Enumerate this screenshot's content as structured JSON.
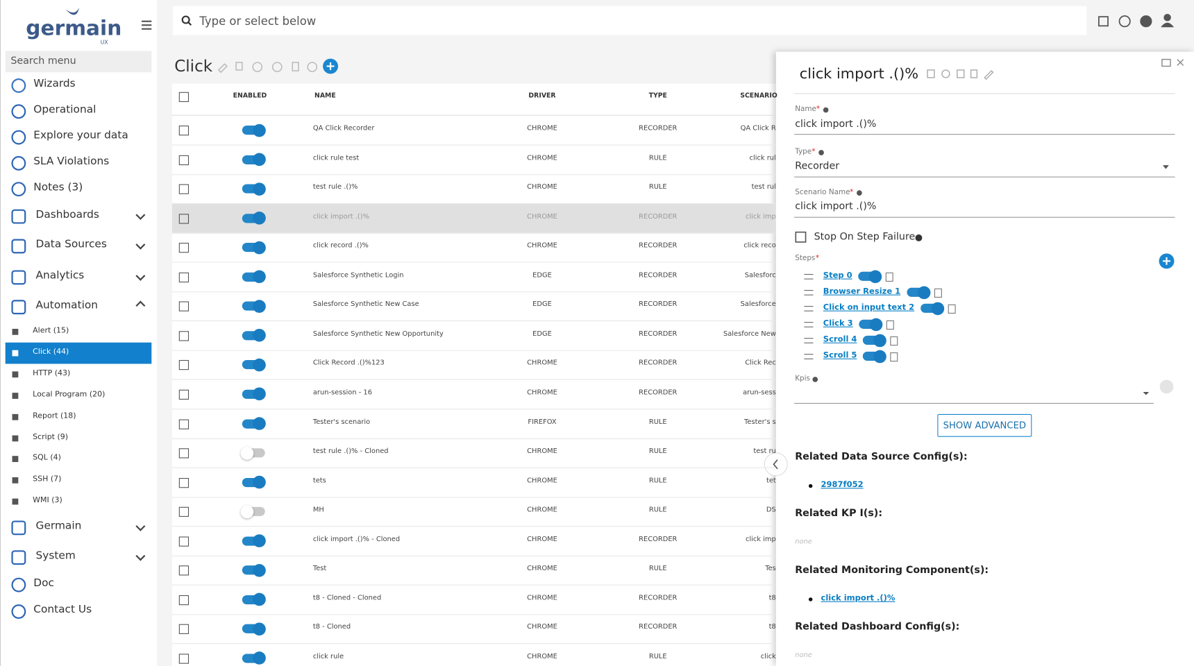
{
  "sidebar": {
    "logo": "germain",
    "logo_sub": "UX",
    "search_placeholder": "Search menu",
    "menu": [
      {
        "label": "Wizards"
      },
      {
        "label": "Operational"
      },
      {
        "label": "Explore your data"
      },
      {
        "label": "SLA Violations"
      },
      {
        "label": "Notes (3)"
      },
      {
        "label": "Dashboards",
        "expandable": true
      },
      {
        "label": "Data Sources",
        "expandable": true
      },
      {
        "label": "Analytics",
        "expandable": true
      },
      {
        "label": "Automation",
        "expandable": true,
        "expanded": true,
        "children": [
          {
            "label": "Alert (15)"
          },
          {
            "label": "Click (44)",
            "selected": true
          },
          {
            "label": "HTTP (43)"
          },
          {
            "label": "Local Program (20)"
          },
          {
            "label": "Report (18)"
          },
          {
            "label": "Script (9)"
          },
          {
            "label": "SQL (4)"
          },
          {
            "label": "SSH (7)"
          },
          {
            "label": "WMI (3)"
          }
        ]
      },
      {
        "label": "Germain",
        "expandable": true
      },
      {
        "label": "System",
        "expandable": true
      },
      {
        "label": "Doc"
      },
      {
        "label": "Contact Us"
      }
    ]
  },
  "topbar": {
    "search_placeholder": "Type or select below"
  },
  "page": {
    "title": "Click"
  },
  "table": {
    "columns": [
      "ENABLED",
      "NAME",
      "DRIVER",
      "TYPE",
      "SCENARIO"
    ],
    "selected_row": 3,
    "rows": [
      {
        "enabled": true,
        "name": "QA Click Recorder",
        "driver": "CHROME",
        "type": "RECORDER",
        "scenario": "QA Click R"
      },
      {
        "enabled": true,
        "name": "click rule test",
        "driver": "CHROME",
        "type": "RULE",
        "scenario": "click rul"
      },
      {
        "enabled": true,
        "name": "test rule .()%",
        "driver": "CHROME",
        "type": "RULE",
        "scenario": "test rul"
      },
      {
        "enabled": true,
        "name": "click import .()%",
        "driver": "CHROME",
        "type": "RECORDER",
        "scenario": "click imp"
      },
      {
        "enabled": true,
        "name": "click record .()%",
        "driver": "CHROME",
        "type": "RECORDER",
        "scenario": "click reco"
      },
      {
        "enabled": true,
        "name": "Salesforce Synthetic Login",
        "driver": "EDGE",
        "type": "RECORDER",
        "scenario": "Salesforc"
      },
      {
        "enabled": true,
        "name": "Salesforce Synthetic New Case",
        "driver": "EDGE",
        "type": "RECORDER",
        "scenario": "Salesforce"
      },
      {
        "enabled": true,
        "name": "Salesforce Synthetic New Opportunity",
        "driver": "EDGE",
        "type": "RECORDER",
        "scenario": "Salesforce New"
      },
      {
        "enabled": true,
        "name": "Click Record .()%123",
        "driver": "CHROME",
        "type": "RECORDER",
        "scenario": "Click Rec"
      },
      {
        "enabled": true,
        "name": "arun-session - 16",
        "driver": "CHROME",
        "type": "RECORDER",
        "scenario": "arun-sess"
      },
      {
        "enabled": true,
        "name": "Tester's scenario",
        "driver": "FIREFOX",
        "type": "RULE",
        "scenario": "Tester's s"
      },
      {
        "enabled": false,
        "name": "test rule .()% - Cloned",
        "driver": "CHROME",
        "type": "RULE",
        "scenario": "test ru"
      },
      {
        "enabled": true,
        "name": "tets",
        "driver": "CHROME",
        "type": "RULE",
        "scenario": "tet"
      },
      {
        "enabled": false,
        "name": "MH",
        "driver": "CHROME",
        "type": "RULE",
        "scenario": "DS"
      },
      {
        "enabled": true,
        "name": "click import .()% - Cloned",
        "driver": "CHROME",
        "type": "RECORDER",
        "scenario": "click imp"
      },
      {
        "enabled": true,
        "name": "Test",
        "driver": "CHROME",
        "type": "RULE",
        "scenario": "Tes"
      },
      {
        "enabled": true,
        "name": "t8 - Cloned - Cloned",
        "driver": "CHROME",
        "type": "RECORDER",
        "scenario": "t8"
      },
      {
        "enabled": true,
        "name": "t8 - Cloned",
        "driver": "CHROME",
        "type": "RECORDER",
        "scenario": "t8"
      },
      {
        "enabled": true,
        "name": "click rule",
        "driver": "CHROME",
        "type": "RULE",
        "scenario": "click"
      }
    ]
  },
  "panel": {
    "title": "click import .()%",
    "required_mark": "*",
    "fields": [
      {
        "label": "Name",
        "value": "click import .()%"
      },
      {
        "label": "Type",
        "value": "Recorder",
        "dropdown": true
      },
      {
        "label": "Scenario Name",
        "value": "click import .()%"
      }
    ],
    "checkbox": "Stop On Step Failure",
    "steps_label": "Steps",
    "steps": [
      "Step 0",
      "Browser Resize 1",
      "Click on input text 2",
      "Click 3",
      "Scroll 4",
      "Scroll 5"
    ],
    "kpis_label": "Kpis",
    "button": "SHOW ADVANCED",
    "sections": [
      {
        "heading": "Related Data Source Config(s):",
        "links": [
          "2987f052"
        ]
      },
      {
        "heading": "Related KP I(s):",
        "empty": "none"
      },
      {
        "heading": "Related Monitoring Component(s):",
        "links": [
          "click import .()%"
        ]
      },
      {
        "heading": "Related Dashboard Config(s):",
        "empty": "none"
      }
    ]
  }
}
